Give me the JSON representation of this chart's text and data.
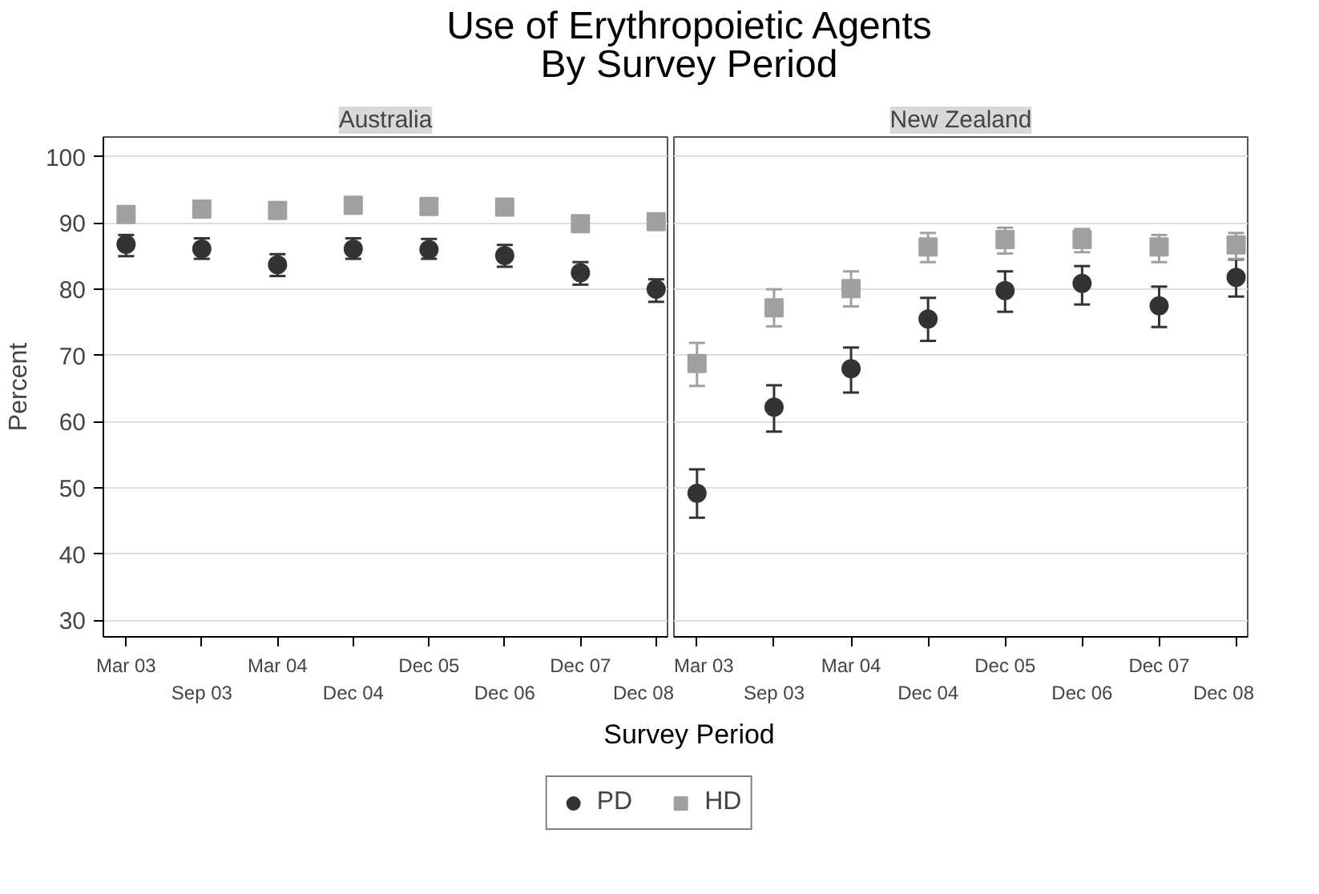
{
  "chart_data": [
    {
      "type": "scatter",
      "title": "Use of Erythropoietic Agents\nBy Survey Period",
      "subtitle": "Australia",
      "xlabel": "Survey Period",
      "ylabel": "Percent",
      "categories": [
        "Mar 03",
        "Sep 03",
        "Mar 04",
        "Dec 04",
        "Dec 05",
        "Dec 06",
        "Dec 07",
        "Dec 08"
      ],
      "ylim": [
        27.5,
        103
      ],
      "yticks": [
        30,
        40,
        50,
        60,
        70,
        80,
        90,
        100
      ],
      "grid": "y",
      "legend": "bottom",
      "series": [
        {
          "name": "PD",
          "color": "#333333",
          "marker": "circle",
          "values": [
            86.8,
            86.1,
            83.7,
            86.1,
            86.0,
            85.1,
            82.5,
            80.0
          ],
          "errors": [
            [
              85.0,
              88.2
            ],
            [
              84.6,
              87.7
            ],
            [
              82.0,
              85.3
            ],
            [
              84.6,
              87.7
            ],
            [
              84.6,
              87.6
            ],
            [
              83.4,
              86.7
            ],
            [
              80.7,
              84.1
            ],
            [
              78.1,
              81.5
            ]
          ]
        },
        {
          "name": "HD",
          "color": "#a0a0a0",
          "marker": "square",
          "values": [
            91.3,
            92.1,
            91.9,
            92.7,
            92.5,
            92.4,
            89.9,
            90.2
          ]
        }
      ]
    },
    {
      "type": "scatter",
      "subtitle": "New Zealand",
      "categories": [
        "Mar 03",
        "Sep 03",
        "Mar 04",
        "Dec 04",
        "Dec 05",
        "Dec 06",
        "Dec 07",
        "Dec 08"
      ],
      "ylim": [
        27.5,
        103
      ],
      "yticks": [
        30,
        40,
        50,
        60,
        70,
        80,
        90,
        100
      ],
      "grid": "y",
      "tick_labels": "x",
      "series": [
        {
          "color": "#333333",
          "marker": "circle",
          "values": [
            49.2,
            62.2,
            68.0,
            75.5,
            79.8,
            80.9,
            77.5,
            81.8
          ],
          "errors": [
            [
              45.5,
              52.8
            ],
            [
              58.5,
              65.5
            ],
            [
              64.4,
              71.2
            ],
            [
              72.2,
              78.7
            ],
            [
              76.6,
              82.7
            ],
            [
              77.7,
              83.5
            ],
            [
              74.3,
              80.4
            ],
            [
              78.9,
              84.5
            ]
          ]
        },
        {
          "color": "#a0a0a0",
          "marker": "square",
          "values": [
            68.8,
            77.2,
            80.1,
            86.4,
            87.5,
            87.5,
            86.4,
            86.7
          ],
          "errors": [
            [
              65.4,
              71.9
            ],
            [
              74.4,
              80.0
            ],
            [
              77.4,
              82.7
            ],
            [
              84.1,
              88.5
            ],
            [
              85.4,
              89.3
            ],
            [
              85.6,
              89.1
            ],
            [
              84.1,
              88.2
            ],
            [
              84.6,
              88.5
            ]
          ]
        }
      ]
    }
  ]
}
